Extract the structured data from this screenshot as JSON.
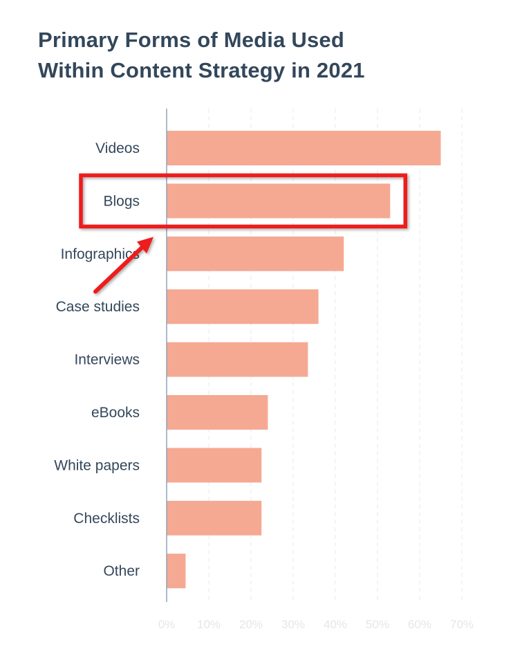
{
  "chart_data": {
    "type": "bar",
    "orientation": "horizontal",
    "title": "Primary Forms of Media Used Within Content Strategy in 2021",
    "title_lines": [
      "Primary Forms of Media Used",
      "Within Content Strategy in 2021"
    ],
    "xlabel": "",
    "ylabel": "",
    "categories": [
      "Videos",
      "Blogs",
      "Infographics",
      "Case studies",
      "Interviews",
      "eBooks",
      "White papers",
      "Checklists",
      "Other"
    ],
    "values": [
      65,
      53,
      42,
      36,
      33.5,
      24,
      22.5,
      22.5,
      4.5
    ],
    "value_unit": "%",
    "xlim": [
      0,
      70
    ],
    "x_ticks": [
      0,
      10,
      20,
      30,
      40,
      50,
      60,
      70
    ],
    "x_tick_labels": [
      "0%",
      "10%",
      "20%",
      "30%",
      "40%",
      "50%",
      "60%",
      "70%"
    ],
    "grid": "vertical dashed",
    "legend": "none",
    "colors": {
      "bar": "#f5a993",
      "title": "#33475b",
      "label": "#33475b",
      "tick": "#e3e6ea",
      "axis": "#8fa3bb",
      "grid": "#eef1f4"
    },
    "annotations": [
      {
        "kind": "highlight-box",
        "target": "Blogs",
        "color": "#ee1d1d"
      },
      {
        "kind": "arrow",
        "target": "Blogs",
        "color": "#ee1d1d"
      }
    ]
  }
}
